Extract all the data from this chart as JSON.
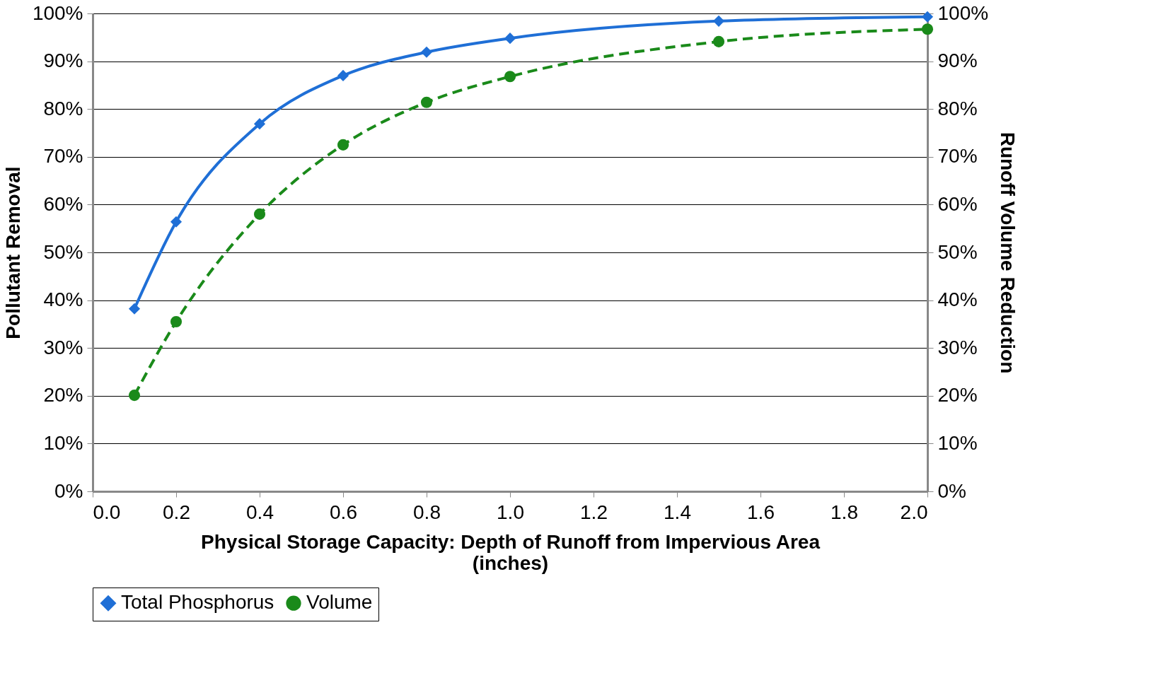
{
  "chart_data": {
    "type": "line",
    "xlabel": "Physical Storage Capacity: Depth of Runoff from Impervious Area (inches)",
    "ylabel": "Pollutant Removal",
    "y2label": "Runoff Volume Reduction",
    "x": [
      0.1,
      0.2,
      0.4,
      0.6,
      0.8,
      1.0,
      1.5,
      2.0
    ],
    "series": [
      {
        "name": "Total Phosphorus",
        "color": "#1f6fd6",
        "marker": "diamond",
        "line_style": "solid",
        "values": [
          38.2,
          56.4,
          76.9,
          87.0,
          91.9,
          94.8,
          98.4,
          99.3
        ]
      },
      {
        "name": "Volume",
        "color": "#1a8a1a",
        "marker": "circle",
        "line_style": "dashed",
        "axis": "y2",
        "values": [
          20.1,
          35.5,
          58.0,
          72.5,
          81.4,
          86.8,
          94.1,
          96.7
        ]
      }
    ],
    "xlim": [
      0,
      2
    ],
    "xticks": [
      {
        "value": 0,
        "label": "0.0"
      },
      0.2,
      0.4,
      0.6,
      0.8,
      {
        "value": 1,
        "label": "1.0"
      },
      1.2,
      1.4,
      1.6,
      1.8,
      {
        "value": 2,
        "label": "2.0"
      }
    ],
    "ylim": [
      0,
      100
    ],
    "yticks": [
      {
        "value": 0,
        "label": "0%"
      },
      {
        "value": 10,
        "label": "10%"
      },
      {
        "value": 20,
        "label": "20%"
      },
      {
        "value": 30,
        "label": "30%"
      },
      {
        "value": 40,
        "label": "40%"
      },
      {
        "value": 50,
        "label": "50%"
      },
      {
        "value": 60,
        "label": "60%"
      },
      {
        "value": 70,
        "label": "70%"
      },
      {
        "value": 80,
        "label": "80%"
      },
      {
        "value": 90,
        "label": "90%"
      },
      {
        "value": 100,
        "label": "100%"
      }
    ],
    "y2lim": [
      0,
      100
    ],
    "y2ticks": [
      {
        "value": 0,
        "label": "0%"
      },
      {
        "value": 10,
        "label": "10%"
      },
      {
        "value": 20,
        "label": "20%"
      },
      {
        "value": 30,
        "label": "30%"
      },
      {
        "value": 40,
        "label": "40%"
      },
      {
        "value": 50,
        "label": "50%"
      },
      {
        "value": 60,
        "label": "60%"
      },
      {
        "value": 70,
        "label": "70%"
      },
      {
        "value": 80,
        "label": "80%"
      },
      {
        "value": 90,
        "label": "90%"
      },
      {
        "value": 100,
        "label": "100%"
      }
    ],
    "grid": "y",
    "legend": "bottom"
  }
}
